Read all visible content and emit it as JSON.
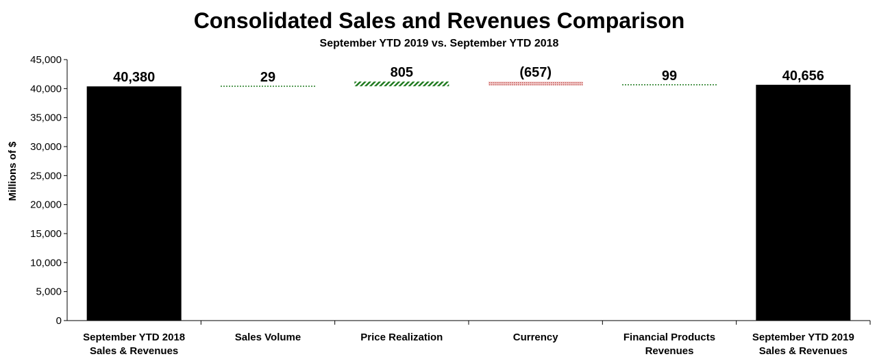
{
  "chart_data": {
    "type": "waterfall",
    "title": "Consolidated Sales and Revenues Comparison",
    "subtitle": "September YTD 2019 vs. September YTD 2018",
    "ylabel": "Millions of $",
    "ylim": [
      0,
      45000
    ],
    "yticks": [
      "0",
      "5,000",
      "10,000",
      "15,000",
      "20,000",
      "25,000",
      "30,000",
      "35,000",
      "40,000",
      "45,000"
    ],
    "grid": false,
    "categories": [
      [
        "September YTD 2018",
        "Sales & Revenues"
      ],
      [
        "Sales Volume"
      ],
      [
        "Price Realization"
      ],
      [
        "Currency"
      ],
      [
        "Financial Products",
        "Revenues"
      ],
      [
        "September YTD 2019",
        "Sales & Revenues"
      ]
    ],
    "values": [
      40380,
      29,
      805,
      -657,
      99,
      40656
    ],
    "kinds": [
      "total",
      "delta",
      "delta",
      "delta",
      "delta",
      "total"
    ],
    "data_labels": [
      "40,380",
      "29",
      "805",
      "(657)",
      "99",
      "40,656"
    ],
    "colors": {
      "total": "#000000",
      "increase": "#1e7a1e",
      "decrease": "#c0504d"
    }
  }
}
